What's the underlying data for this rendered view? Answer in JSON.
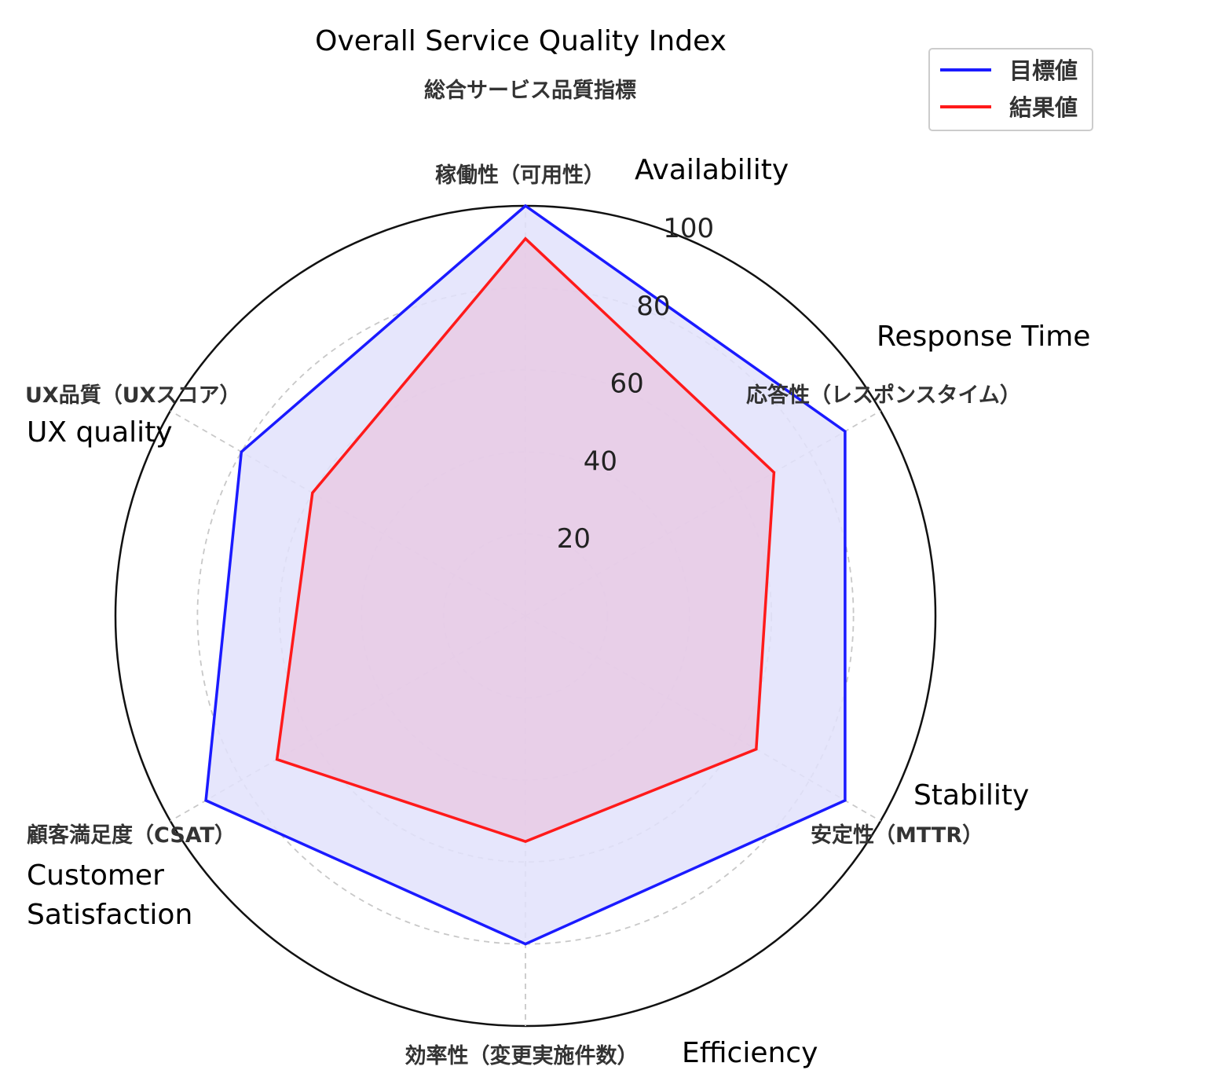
{
  "chart_data": {
    "type": "radar",
    "title": "Overall Service Quality Index",
    "subtitle": "総合サービス品質指標",
    "axes": [
      {
        "label": "稼働性（可用性）",
        "en_label": "Availability"
      },
      {
        "label": "応答性（レスポンスタイム）",
        "en_label": "Response Time"
      },
      {
        "label": "安定性（MTTR）",
        "en_label": "Stability"
      },
      {
        "label": "効率性（変更実施件数）",
        "en_label": "Efficiency"
      },
      {
        "label": "顧客満足度（CSAT）",
        "en_label": "Customer Satisfaction"
      },
      {
        "label": "UX品質（UXスコア）",
        "en_label": "UX quality"
      }
    ],
    "series": [
      {
        "name": "目標値",
        "color": "#1a1aff",
        "fill": "#e2e2fb",
        "values": [
          100,
          90,
          90,
          80,
          90,
          80
        ]
      },
      {
        "name": "結果値",
        "color": "#ff1a1a",
        "fill": "#e8cae4",
        "values": [
          92,
          70,
          65,
          55,
          70,
          60
        ]
      }
    ],
    "rlim": [
      0,
      100
    ],
    "ticks": [
      20,
      40,
      60,
      80,
      100
    ],
    "tick_labels": [
      "20",
      "40",
      "60",
      "80",
      "100"
    ],
    "grid": true,
    "legend": "top-right"
  }
}
